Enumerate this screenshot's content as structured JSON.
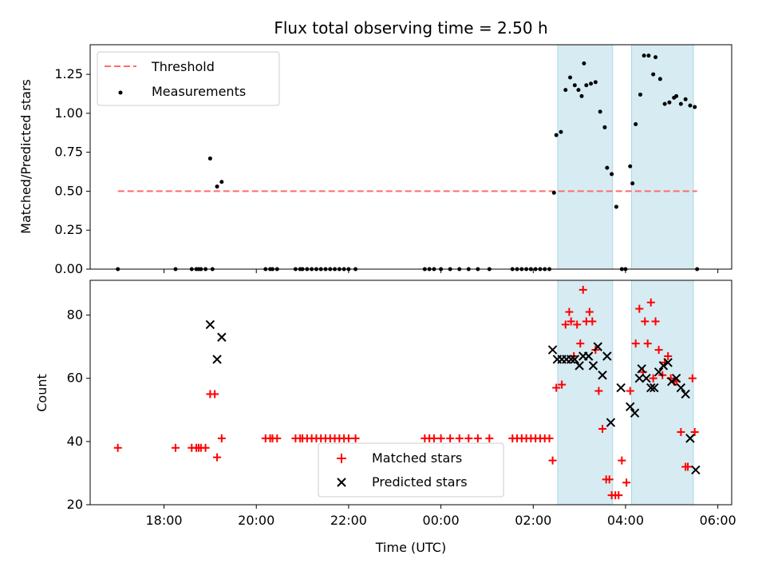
{
  "chart_data": [
    {
      "type": "scatter",
      "title": "Flux total observing time = 2.50 h",
      "xlabel": "",
      "ylabel": "Matched/Predicted stars",
      "ylim": [
        0,
        1.44
      ],
      "xlim": [
        16.4,
        30.3
      ],
      "y_ticks": [
        "0.00",
        "0.25",
        "0.50",
        "0.75",
        "1.00",
        "1.25"
      ],
      "legend": {
        "position": "upper-left",
        "entries": [
          "Threshold",
          "Measurements"
        ]
      },
      "shaded_intervals": [
        [
          26.53,
          27.72
        ],
        [
          28.13,
          29.47
        ]
      ],
      "threshold": {
        "name": "Threshold",
        "value": 0.5,
        "x_start": 17.0,
        "x_end": 29.55,
        "color": "#ff6b6b"
      },
      "series": [
        {
          "name": "Measurements",
          "color": "#000000",
          "x": [
            17.0,
            18.25,
            18.6,
            18.7,
            18.75,
            18.8,
            18.9,
            19.0,
            19.05,
            19.15,
            19.25,
            20.2,
            20.3,
            20.35,
            20.45,
            20.85,
            20.95,
            21.0,
            21.1,
            21.2,
            21.3,
            21.4,
            21.5,
            21.6,
            21.7,
            21.8,
            21.9,
            22.0,
            22.15,
            23.65,
            23.75,
            23.85,
            24.0,
            24.2,
            24.4,
            24.6,
            24.8,
            25.05,
            25.55,
            25.65,
            25.75,
            25.85,
            25.95,
            26.05,
            26.15,
            26.25,
            26.35,
            26.45,
            26.5,
            26.6,
            26.7,
            26.8,
            26.9,
            26.98,
            27.05,
            27.1,
            27.15,
            27.25,
            27.35,
            27.45,
            27.55,
            27.6,
            27.7,
            27.8,
            27.92,
            28.0,
            28.1,
            28.15,
            28.22,
            28.32,
            28.4,
            28.5,
            28.6,
            28.65,
            28.75,
            28.85,
            28.95,
            29.05,
            29.1,
            29.2,
            29.3,
            29.4,
            29.5,
            29.55
          ],
          "y": [
            0,
            0,
            0,
            0,
            0,
            0,
            0,
            0.71,
            0,
            0.53,
            0.56,
            0,
            0,
            0,
            0,
            0,
            0,
            0,
            0,
            0,
            0,
            0,
            0,
            0,
            0,
            0,
            0,
            0,
            0,
            0,
            0,
            0,
            0,
            0,
            0,
            0,
            0,
            0,
            0,
            0,
            0,
            0,
            0,
            0,
            0,
            0,
            0,
            0.49,
            0.86,
            0.88,
            1.15,
            1.23,
            1.18,
            1.15,
            1.11,
            1.32,
            1.18,
            1.19,
            1.2,
            1.01,
            0.91,
            0.65,
            0.61,
            0.4,
            0,
            0,
            0.66,
            0.55,
            0.93,
            1.12,
            1.37,
            1.37,
            1.25,
            1.36,
            1.22,
            1.06,
            1.07,
            1.1,
            1.11,
            1.06,
            1.09,
            1.05,
            1.04,
            0
          ]
        }
      ]
    },
    {
      "type": "scatter",
      "title": "",
      "xlabel": "Time (UTC)",
      "ylabel": "Count",
      "ylim": [
        20,
        91
      ],
      "xlim": [
        16.4,
        30.3
      ],
      "y_ticks": [
        "20",
        "40",
        "60",
        "80"
      ],
      "x_ticks": [
        {
          "value": 18,
          "label": "18:00"
        },
        {
          "value": 20,
          "label": "20:00"
        },
        {
          "value": 22,
          "label": "22:00"
        },
        {
          "value": 24,
          "label": "00:00"
        },
        {
          "value": 26,
          "label": "02:00"
        },
        {
          "value": 28,
          "label": "04:00"
        },
        {
          "value": 30,
          "label": "06:00"
        }
      ],
      "legend": {
        "position": "lower-center",
        "entries": [
          "Matched stars",
          "Predicted stars"
        ]
      },
      "shaded_intervals": [
        [
          26.53,
          27.72
        ],
        [
          28.13,
          29.47
        ]
      ],
      "series": [
        {
          "name": "Matched stars",
          "color": "#ff0000",
          "marker": "plus",
          "x": [
            17.0,
            18.25,
            18.6,
            18.7,
            18.75,
            18.8,
            18.9,
            19.0,
            19.1,
            19.15,
            19.25,
            20.2,
            20.3,
            20.35,
            20.45,
            20.85,
            20.95,
            21.0,
            21.1,
            21.2,
            21.3,
            21.4,
            21.5,
            21.6,
            21.7,
            21.8,
            21.9,
            22.0,
            22.15,
            23.65,
            23.75,
            23.85,
            24.0,
            24.2,
            24.4,
            24.6,
            24.8,
            25.05,
            25.55,
            25.65,
            25.75,
            25.85,
            25.95,
            26.05,
            26.15,
            26.25,
            26.35,
            26.42,
            26.5,
            26.62,
            26.7,
            26.78,
            26.82,
            26.88,
            26.95,
            27.02,
            27.08,
            27.15,
            27.22,
            27.28,
            27.35,
            27.42,
            27.5,
            27.58,
            27.65,
            27.7,
            27.78,
            27.85,
            27.92,
            28.02,
            28.1,
            28.22,
            28.3,
            28.38,
            28.42,
            28.48,
            28.55,
            28.6,
            28.65,
            28.72,
            28.8,
            28.85,
            28.92,
            28.98,
            29.05,
            29.1,
            29.2,
            29.3,
            29.35,
            29.45,
            29.5
          ],
          "y": [
            38,
            38,
            38,
            38,
            38,
            38,
            38,
            55,
            55,
            35,
            41,
            41,
            41,
            41,
            41,
            41,
            41,
            41,
            41,
            41,
            41,
            41,
            41,
            41,
            41,
            41,
            41,
            41,
            41,
            41,
            41,
            41,
            41,
            41,
            41,
            41,
            41,
            41,
            41,
            41,
            41,
            41,
            41,
            41,
            41,
            41,
            41,
            34,
            57,
            58,
            77,
            81,
            78,
            67,
            77,
            71,
            88,
            78,
            81,
            78,
            69,
            56,
            44,
            28,
            28,
            23,
            23,
            23,
            34,
            27,
            56,
            71,
            82,
            62,
            78,
            71,
            84,
            60,
            78,
            69,
            61,
            65,
            67,
            60,
            59,
            59,
            43,
            32,
            32,
            60,
            43
          ]
        },
        {
          "name": "Predicted stars",
          "color": "#000000",
          "marker": "x",
          "x": [
            19.0,
            19.15,
            19.25,
            26.42,
            26.52,
            26.62,
            26.72,
            26.82,
            26.9,
            27.0,
            27.08,
            27.2,
            27.3,
            27.4,
            27.5,
            27.6,
            27.68,
            27.9,
            28.1,
            28.2,
            28.3,
            28.35,
            28.45,
            28.55,
            28.62,
            28.72,
            28.82,
            28.92,
            29.0,
            29.1,
            29.2,
            29.3,
            29.4,
            29.52
          ],
          "y": [
            77,
            66,
            73,
            69,
            66,
            66,
            66,
            66,
            66,
            64,
            67,
            67,
            64,
            70,
            61,
            67,
            46,
            57,
            51,
            49,
            60,
            63,
            60,
            57,
            57,
            62,
            64,
            65,
            59,
            60,
            57,
            55,
            41,
            31
          ]
        }
      ]
    }
  ]
}
